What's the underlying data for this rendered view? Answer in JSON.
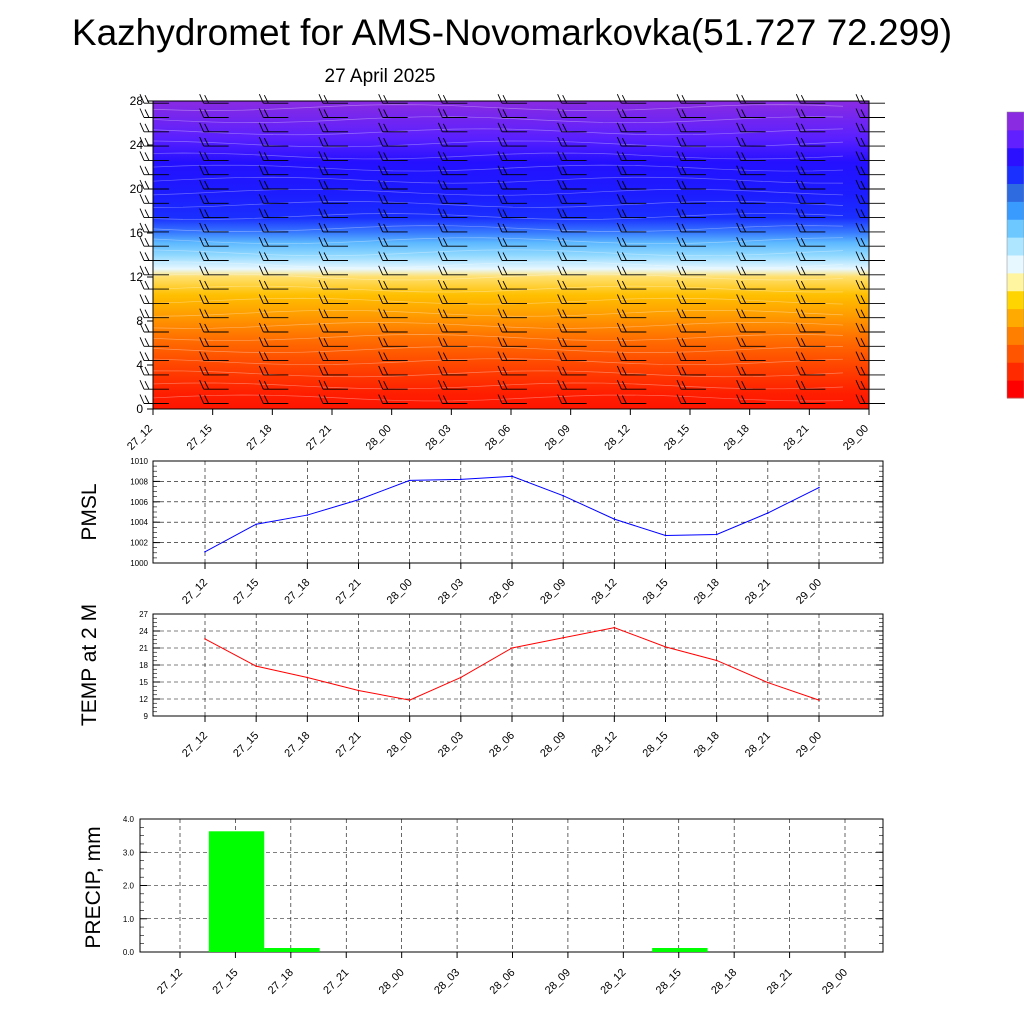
{
  "header": {
    "title": "Kazhydromet for AMS-Novomarkovka(51.727 72.299)",
    "subtitle": "27 April 2025"
  },
  "time_labels": [
    "27_12",
    "27_15",
    "27_18",
    "27_21",
    "28_00",
    "28_03",
    "28_06",
    "28_09",
    "28_12",
    "28_15",
    "28_18",
    "28_21",
    "29_00"
  ],
  "colorbar": {
    "colors": [
      "#ff0000",
      "#ff2a00",
      "#ff5500",
      "#ff8000",
      "#ffaa00",
      "#ffd400",
      "#fff5a0",
      "#e8f8ff",
      "#aee6ff",
      "#6cc8ff",
      "#3a9bff",
      "#2f6be0",
      "#1a30ff",
      "#2a10ff",
      "#6020ff",
      "#8a2be2"
    ]
  },
  "chart_data": [
    {
      "type": "heatmap",
      "title": "",
      "xlabel": "",
      "ylabel": "",
      "x": [
        "27_12",
        "27_15",
        "27_18",
        "27_21",
        "28_00",
        "28_03",
        "28_06",
        "28_09",
        "28_12",
        "28_15",
        "28_18",
        "28_21",
        "29_00"
      ],
      "ylim": [
        0,
        28
      ],
      "yticks": [
        0,
        4,
        8,
        12,
        16,
        20,
        24,
        28
      ],
      "bands": [
        {
          "from": 0,
          "to": 4,
          "level": "red"
        },
        {
          "from": 4,
          "to": 8,
          "level": "orange"
        },
        {
          "from": 8,
          "to": 12.5,
          "level": "yellow"
        },
        {
          "from": 12.5,
          "to": 14,
          "level": "pale"
        },
        {
          "from": 14,
          "to": 17,
          "level": "cyan-blue"
        },
        {
          "from": 17,
          "to": 24,
          "level": "blue"
        },
        {
          "from": 24,
          "to": 28,
          "level": "violet"
        }
      ],
      "wind_barbs": true
    },
    {
      "type": "line",
      "title": "",
      "xlabel": "",
      "ylabel": "PMSL",
      "x": [
        "27_12",
        "27_15",
        "27_18",
        "27_21",
        "28_00",
        "28_03",
        "28_06",
        "28_09",
        "28_12",
        "28_15",
        "28_18",
        "28_21",
        "29_00"
      ],
      "series": [
        {
          "values": [
            1001.1,
            1003.8,
            1004.7,
            1006.2,
            1008.1,
            1008.2,
            1008.5,
            1006.6,
            1004.3,
            1002.7,
            1002.8,
            1004.9,
            1007.4
          ],
          "color": "#0000ff"
        }
      ],
      "ylim": [
        1000,
        1010
      ],
      "yticks": [
        1000,
        1002,
        1004,
        1006,
        1008,
        1010
      ],
      "grid": true
    },
    {
      "type": "line",
      "title": "",
      "xlabel": "",
      "ylabel": "TEMP at 2 M",
      "x": [
        "27_12",
        "27_15",
        "27_18",
        "27_21",
        "28_00",
        "28_03",
        "28_06",
        "28_09",
        "28_12",
        "28_15",
        "28_18",
        "28_21",
        "29_00"
      ],
      "series": [
        {
          "values": [
            22.6,
            17.8,
            15.8,
            13.5,
            11.8,
            15.8,
            21.0,
            22.8,
            24.6,
            21.2,
            18.8,
            14.9,
            11.8
          ],
          "color": "#ff0000"
        }
      ],
      "ylim": [
        9,
        27
      ],
      "yticks": [
        9,
        12,
        15,
        18,
        21,
        24,
        27
      ],
      "grid": true
    },
    {
      "type": "bar",
      "title": "",
      "xlabel": "",
      "ylabel": "PRECIP, mm",
      "categories": [
        "27_12",
        "27_15",
        "27_18",
        "27_21",
        "28_00",
        "28_03",
        "28_06",
        "28_09",
        "28_12",
        "28_15",
        "28_18",
        "28_21",
        "29_00"
      ],
      "values": [
        0,
        3.63,
        0.12,
        0,
        0,
        0,
        0,
        0,
        0,
        0.12,
        0,
        0,
        0
      ],
      "ylim": [
        0,
        4
      ],
      "yticks": [
        "0.0",
        "1.0",
        "2.0",
        "3.0",
        "4.0"
      ],
      "bar_color": "#00ff00",
      "grid": true
    }
  ]
}
